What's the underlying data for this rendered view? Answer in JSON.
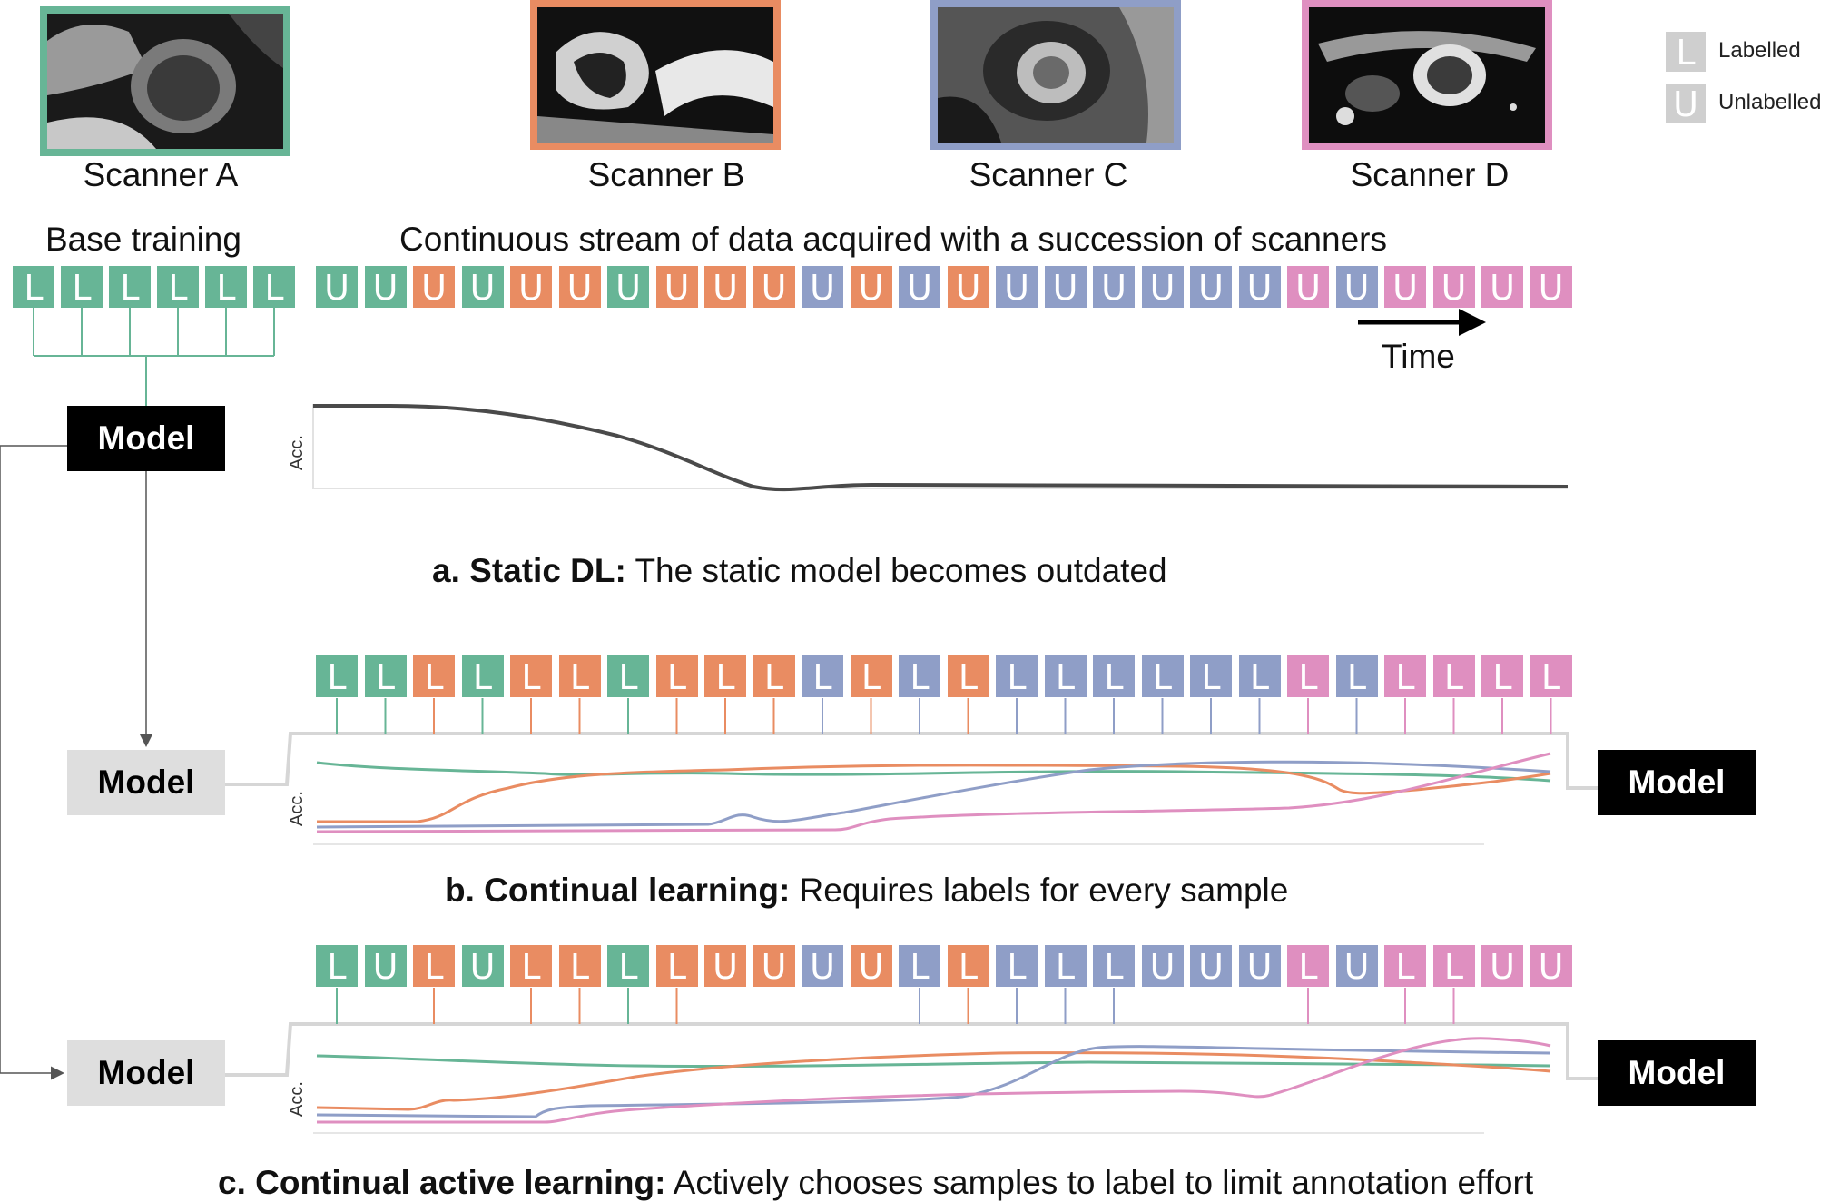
{
  "colors": {
    "scanner_a": "#67b596",
    "scanner_b": "#e98c62",
    "scanner_c": "#8f9ec7",
    "scanner_d": "#df8fc0",
    "legend": "#cfcfcf",
    "acc_static": "#444444"
  },
  "scanners": [
    {
      "label": "Scanner A",
      "key": "A"
    },
    {
      "label": "Scanner B",
      "key": "B"
    },
    {
      "label": "Scanner C",
      "key": "C"
    },
    {
      "label": "Scanner D",
      "key": "D"
    }
  ],
  "legend": {
    "labelled_glyph": "L",
    "labelled_text": "Labelled",
    "unlabelled_glyph": "U",
    "unlabelled_text": "Unlabelled"
  },
  "base_training": {
    "title": "Base training",
    "items": [
      "L",
      "L",
      "L",
      "L",
      "L",
      "L"
    ]
  },
  "stream": {
    "title": "Continuous stream of data acquired with a succession of scanners",
    "scanner_sequence": [
      "A",
      "A",
      "B",
      "A",
      "B",
      "B",
      "A",
      "B",
      "B",
      "B",
      "C",
      "B",
      "C",
      "B",
      "C",
      "C",
      "C",
      "C",
      "C",
      "C",
      "D",
      "C",
      "D",
      "D",
      "D",
      "D"
    ],
    "row_a": [
      "U",
      "U",
      "U",
      "U",
      "U",
      "U",
      "U",
      "U",
      "U",
      "U",
      "U",
      "U",
      "U",
      "U",
      "U",
      "U",
      "U",
      "U",
      "U",
      "U",
      "U",
      "U",
      "U",
      "U",
      "U",
      "U"
    ],
    "row_b": [
      "L",
      "L",
      "L",
      "L",
      "L",
      "L",
      "L",
      "L",
      "L",
      "L",
      "L",
      "L",
      "L",
      "L",
      "L",
      "L",
      "L",
      "L",
      "L",
      "L",
      "L",
      "L",
      "L",
      "L",
      "L",
      "L"
    ],
    "row_c": [
      "L",
      "U",
      "L",
      "U",
      "L",
      "L",
      "L",
      "L",
      "U",
      "U",
      "U",
      "U",
      "L",
      "L",
      "L",
      "L",
      "L",
      "U",
      "U",
      "U",
      "L",
      "U",
      "L",
      "L",
      "U",
      "U"
    ],
    "time_label": "Time"
  },
  "model_label": "Model",
  "acc_label": "Acc.",
  "sections": {
    "a": {
      "bold": "a. Static DL:",
      "text": " The static model becomes outdated"
    },
    "b": {
      "bold": "b. Continual learning:",
      "text": " Requires labels for every sample"
    },
    "c": {
      "bold": "c. Continual active learning:",
      "text": " Actively chooses samples to label to limit annotation effort"
    }
  }
}
